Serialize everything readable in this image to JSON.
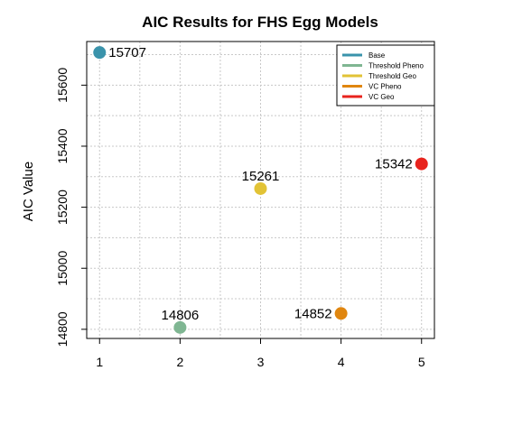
{
  "chart_data": {
    "type": "scatter",
    "title": "AIC Results for FHS Egg Models",
    "xlabel": "",
    "ylabel": "AIC Value",
    "x": [
      1,
      2,
      3,
      4,
      5
    ],
    "x_ticks": [
      "1",
      "2",
      "3",
      "4",
      "5"
    ],
    "y_ticks": [
      "14800",
      "15000",
      "15200",
      "15400",
      "15600"
    ],
    "xlim": [
      0.84,
      5.16
    ],
    "ylim": [
      14770,
      15743
    ],
    "grid": true,
    "legend_position": "top-right",
    "points": [
      {
        "x": 1,
        "y": 15707,
        "label": "15707",
        "series": "Base",
        "color": "#3a93ab",
        "label_side": "right"
      },
      {
        "x": 2,
        "y": 14806,
        "label": "14806",
        "series": "Threshold Pheno",
        "color": "#7fb692",
        "label_side": "top"
      },
      {
        "x": 3,
        "y": 15261,
        "label": "15261",
        "series": "Threshold Geo",
        "color": "#e2c336",
        "label_side": "top"
      },
      {
        "x": 4,
        "y": 14852,
        "label": "14852",
        "series": "VC Pheno",
        "color": "#e0860f",
        "label_side": "left"
      },
      {
        "x": 5,
        "y": 15342,
        "label": "15342",
        "series": "VC Geo",
        "color": "#e8231d",
        "label_side": "left"
      }
    ],
    "legend": [
      {
        "name": "Base",
        "color": "#3a93ab"
      },
      {
        "name": "Threshold Pheno",
        "color": "#7fb692"
      },
      {
        "name": "Threshold Geo",
        "color": "#e2c336"
      },
      {
        "name": "VC Pheno",
        "color": "#e0860f"
      },
      {
        "name": "VC Geo",
        "color": "#e8231d"
      }
    ]
  }
}
